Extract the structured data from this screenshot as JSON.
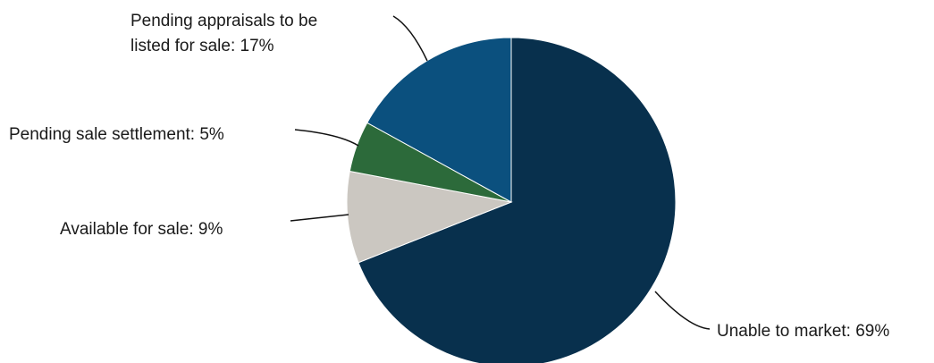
{
  "chart_data": {
    "type": "pie",
    "start_angle_deg": 0,
    "direction": "clockwise",
    "slices": [
      {
        "label": "Unable to market",
        "value": 69,
        "display": "Unable to market: 69%",
        "color": "#08304d"
      },
      {
        "label": "Available for sale",
        "value": 9,
        "display": "Available for sale: 9%",
        "color": "#cbc7c1"
      },
      {
        "label": "Pending sale settlement",
        "value": 5,
        "display": "Pending sale settlement: 5%",
        "color": "#2c6a3a"
      },
      {
        "label": "Pending appraisals to be listed for sale",
        "value": 17,
        "display_lines": [
          "Pending appraisals to be",
          "listed for sale: 17%"
        ],
        "color": "#0b507e"
      }
    ],
    "title": "",
    "legend": "none (labels with leader lines)"
  }
}
